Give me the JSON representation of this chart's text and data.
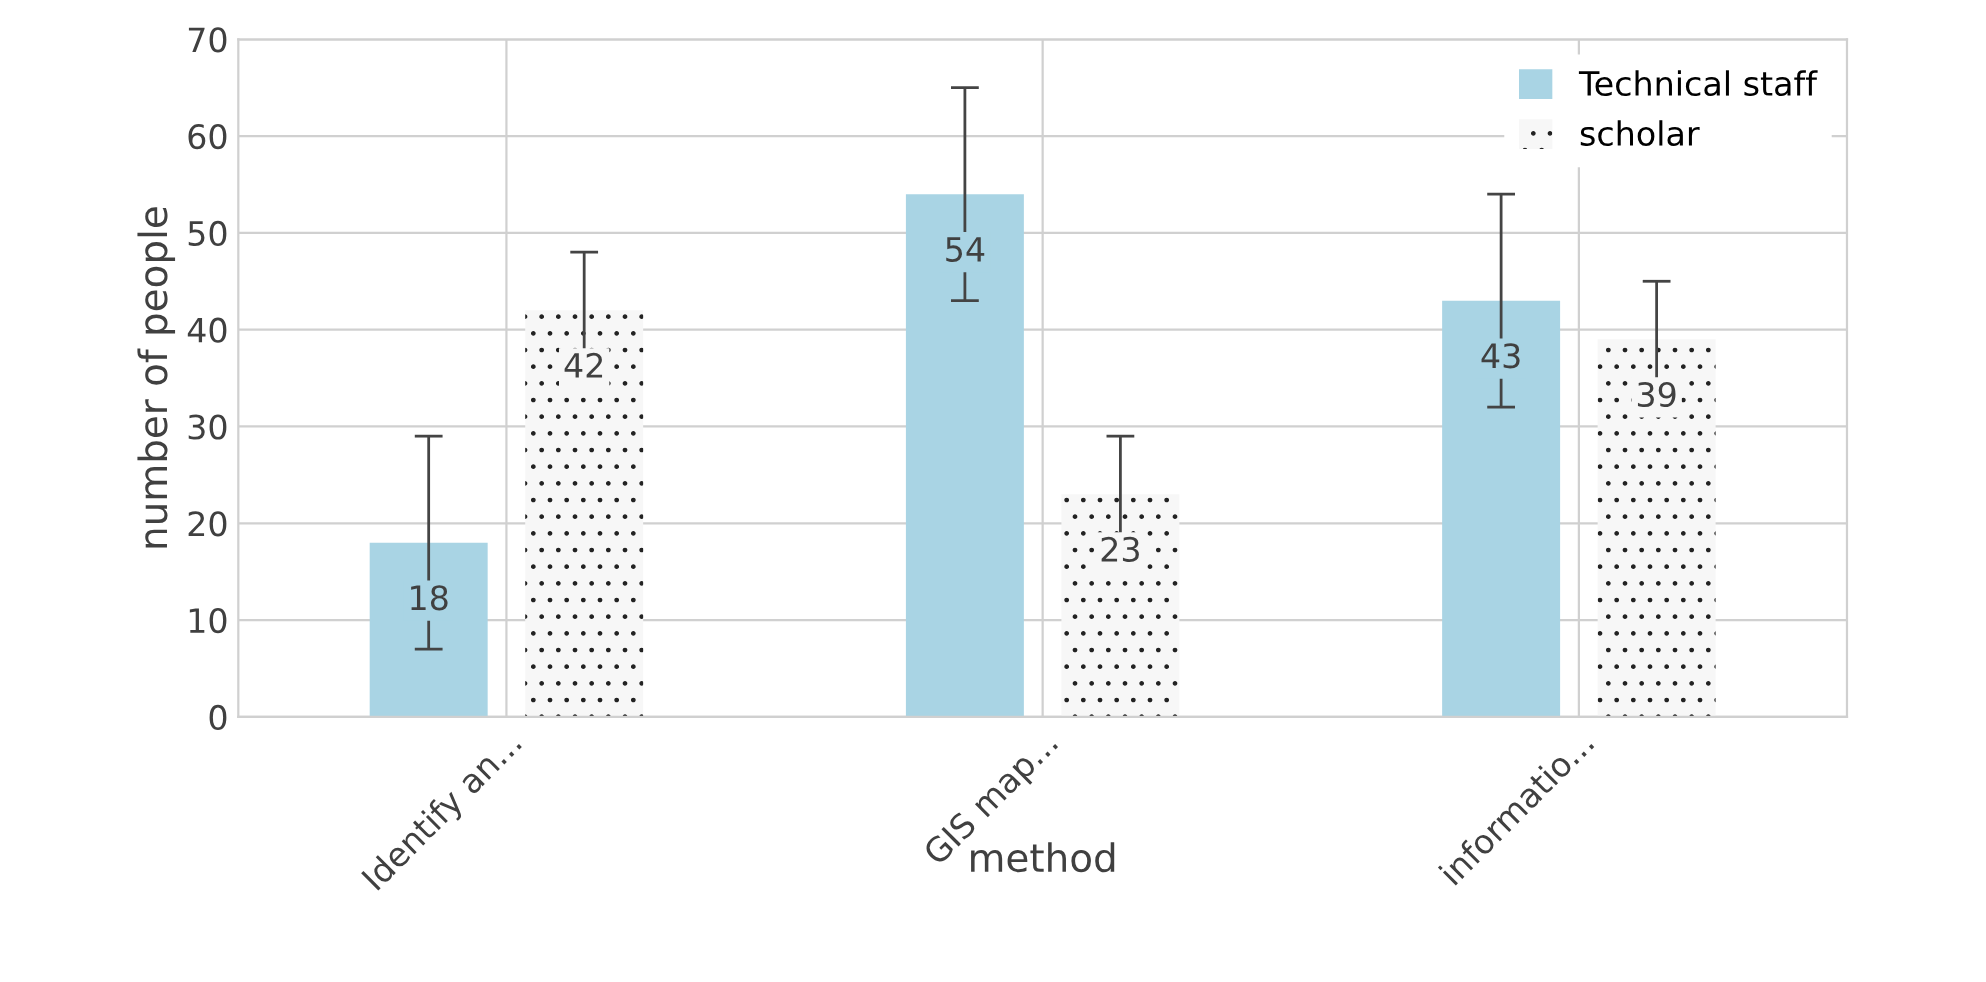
{
  "chart_data": {
    "type": "bar",
    "xlabel": "method",
    "ylabel": "number of people",
    "categories": [
      "Identify an...",
      "GIS map...",
      "informatio..."
    ],
    "series": [
      {
        "name": "Technical staff",
        "color": "#a9d4e4",
        "values": [
          18,
          54,
          43
        ],
        "errors": [
          11,
          11,
          11
        ]
      },
      {
        "name": "scholar",
        "color": "#f7f7f7",
        "values": [
          42,
          23,
          39
        ],
        "errors": [
          6,
          6,
          6
        ]
      }
    ],
    "ylim": [
      0,
      70
    ],
    "yticks": [
      0,
      10,
      20,
      30,
      40,
      50,
      60,
      70
    ],
    "grid": true,
    "legend": "top right",
    "data_labels": true
  }
}
